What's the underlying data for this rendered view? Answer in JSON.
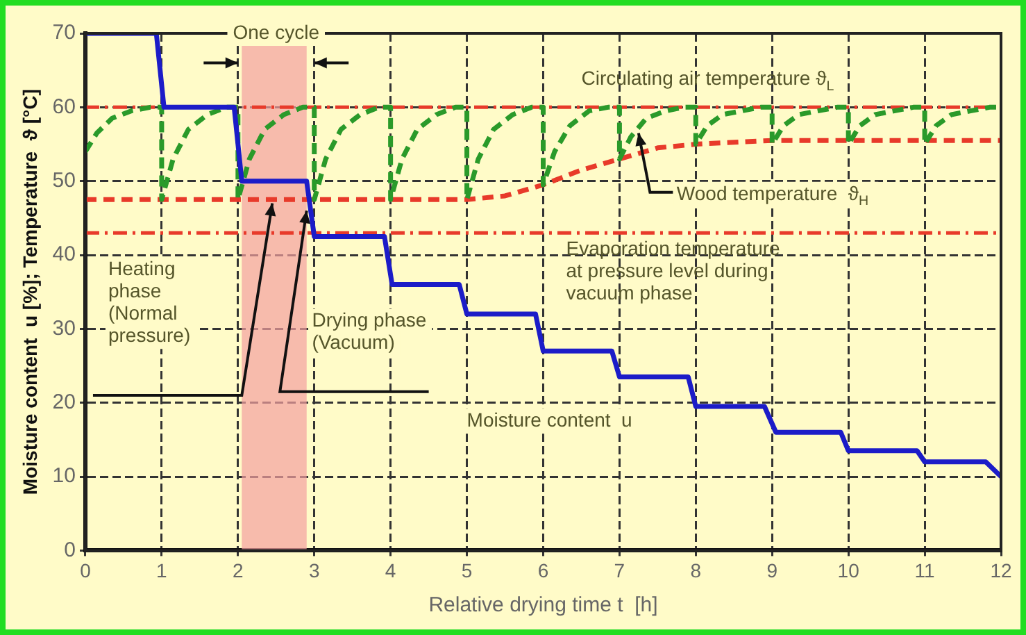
{
  "chart_data": {
    "type": "line",
    "xlabel": "Relative drying time t  [h]",
    "ylabel": "Moisture content  u [%]; Temperature  ϑ [°C]",
    "xlim": [
      0,
      12
    ],
    "ylim": [
      0,
      70
    ],
    "xticks": [
      0,
      1,
      2,
      3,
      4,
      5,
      6,
      7,
      8,
      9,
      10,
      11,
      12
    ],
    "yticks": [
      0,
      10,
      20,
      30,
      40,
      50,
      60,
      70
    ],
    "grid": true,
    "marker": "none",
    "series": [
      {
        "color": "#1c1cc8",
        "line_style": "solid",
        "x": [
          0,
          0.93,
          1.03,
          1.95,
          2.05,
          2.9,
          3.0,
          3.92,
          4.02,
          4.9,
          5.0,
          5.9,
          6.0,
          6.9,
          7.0,
          7.9,
          8.0,
          8.9,
          9.05,
          9.9,
          10.0,
          10.9,
          11.0,
          11.8,
          12
        ],
        "values": [
          70,
          70,
          60,
          60,
          50,
          50,
          42.5,
          42.5,
          36,
          36,
          32,
          32,
          27,
          27,
          23.5,
          23.5,
          19.5,
          19.5,
          16,
          16,
          13.5,
          13.5,
          12,
          12,
          10
        ]
      },
      {
        "color": "#2a9a2a",
        "line_style": "dashed",
        "x": [
          0,
          0.15,
          0.35,
          0.6,
          0.85,
          1,
          1,
          1.15,
          1.35,
          1.6,
          1.85,
          2,
          2,
          2.15,
          2.35,
          2.6,
          2.85,
          3,
          3,
          3.15,
          3.35,
          3.6,
          3.85,
          4,
          4,
          4.15,
          4.35,
          4.6,
          4.85,
          5,
          5,
          5.15,
          5.35,
          5.6,
          5.85,
          6,
          6,
          6.15,
          6.35,
          6.6,
          6.85,
          7,
          7,
          7.15,
          7.35,
          7.6,
          7.85,
          8,
          8,
          8.15,
          8.35,
          8.6,
          8.85,
          9,
          9,
          9.15,
          9.35,
          9.6,
          9.85,
          10,
          10,
          10.15,
          10.35,
          10.6,
          10.85,
          11,
          11,
          11.15,
          11.35,
          11.6,
          11.85,
          12
        ],
        "values": [
          54,
          56.5,
          58.5,
          59.5,
          60,
          60,
          47.5,
          53,
          57,
          59,
          60,
          60,
          47.5,
          53,
          57,
          59,
          60,
          60,
          47.5,
          53,
          57,
          59,
          60,
          60,
          47.5,
          53,
          57,
          59,
          60,
          60,
          47.5,
          53,
          57,
          59,
          60,
          60,
          49.5,
          54,
          57.5,
          59.5,
          60,
          60,
          53,
          56,
          58.5,
          59.5,
          60,
          60,
          55,
          57.5,
          59,
          59.5,
          60,
          60,
          55,
          57.5,
          59,
          59.5,
          60,
          60,
          55,
          57.5,
          59,
          59.5,
          60,
          60,
          55,
          57.5,
          59,
          59.5,
          60,
          60
        ]
      },
      {
        "color": "#e83a2a",
        "line_style": "dashed",
        "x": [
          0,
          5,
          5.5,
          6,
          6.5,
          7,
          7.5,
          8,
          9,
          12
        ],
        "values": [
          47.5,
          47.5,
          48,
          49.5,
          51.5,
          53,
          54.5,
          55,
          55.5,
          55.5
        ]
      }
    ],
    "ref_lines": [
      {
        "axis": "y",
        "value": 60,
        "label": "Circulating air temperature ϑ$_{L}$",
        "color": "#e83a2a",
        "line_style": "dashed"
      },
      {
        "axis": "y",
        "value": 43,
        "label": "Evaporation temperature\nat pressure level during\nvacuum phase",
        "color": "#e83a2a",
        "line_style": "dashed"
      }
    ],
    "bands": [
      {
        "axis": "x",
        "from": 2.05,
        "to": 2.9,
        "color": "#f4a0a0"
      }
    ],
    "annotations": [
      {
        "text": "One cycle",
        "x": 2.5,
        "y": 70
      },
      "Heating\nphase\n(Normal\npressure)",
      "Drying phase\n(Vacuum)",
      "Moisture content  u",
      {
        "text": "Wood temperature  ϑ$_{H}$",
        "x": 7.25,
        "y": 56.5
      }
    ]
  }
}
